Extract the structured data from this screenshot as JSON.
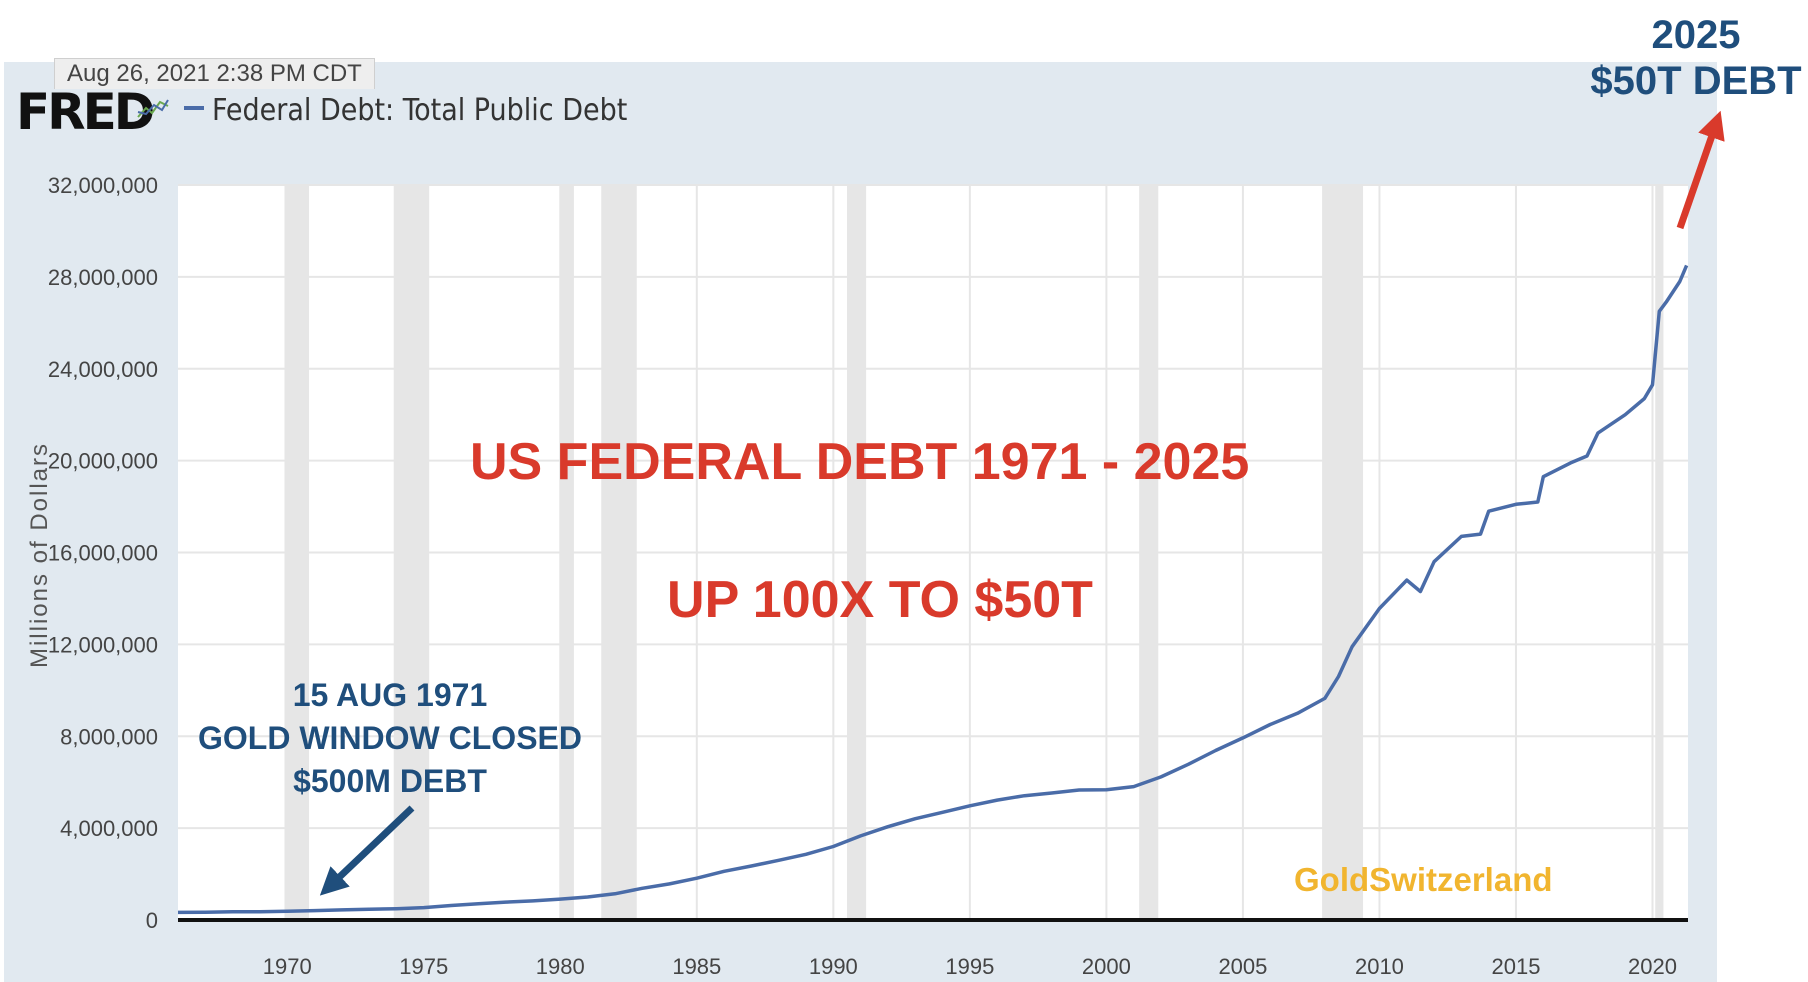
{
  "header": {
    "timestamp": "Aug 26, 2021 2:38 PM CDT",
    "logo": "FRED",
    "icon": "line-chart-icon",
    "legend_label": "Federal Debt: Total Public Debt"
  },
  "annotations": {
    "top_right_year": "2025",
    "top_right_debt": "$50T DEBT",
    "title": "US FEDERAL DEBT 1971 - 2025",
    "subtitle": "UP 100X TO $50T",
    "gold_date": "15 AUG 1971",
    "gold_event": "GOLD WINDOW CLOSED",
    "gold_debt": "$500M DEBT",
    "watermark": "GoldSwitzerland"
  },
  "colors": {
    "series": "#4a6ca8",
    "recession": "#e6e6e6",
    "grid": "#e6e6e6",
    "annotation_blue": "#1f4e7c",
    "annotation_red": "#d93a2b",
    "watermark": "#f1b52f",
    "frame": "#e1e9f0"
  },
  "chart_data": {
    "type": "line",
    "title": "",
    "xlabel": "",
    "ylabel": "Millions of Dollars",
    "xlim": [
      1966,
      2021.3
    ],
    "ylim": [
      0,
      32000000
    ],
    "x_ticks": [
      1970,
      1975,
      1980,
      1985,
      1990,
      1995,
      2000,
      2005,
      2010,
      2015,
      2020
    ],
    "y_ticks": [
      0,
      4000000,
      8000000,
      12000000,
      16000000,
      20000000,
      24000000,
      28000000,
      32000000
    ],
    "y_tick_labels": [
      "0",
      "4,000,000",
      "8,000,000",
      "12,000,000",
      "16,000,000",
      "20,000,000",
      "24,000,000",
      "28,000,000",
      "32,000,000"
    ],
    "grid": true,
    "legend": "top-left",
    "recessions": [
      [
        1969.9,
        1970.8
      ],
      [
        1973.9,
        1975.2
      ],
      [
        1980.0,
        1980.5
      ],
      [
        1981.5,
        1982.8
      ],
      [
        1990.5,
        1991.2
      ],
      [
        2001.2,
        2001.9
      ],
      [
        2007.9,
        2009.4
      ],
      [
        2020.1,
        2020.4
      ]
    ],
    "series": [
      {
        "name": "Federal Debt: Total Public Debt",
        "x": [
          1966,
          1967,
          1968,
          1969,
          1970,
          1971,
          1972,
          1973,
          1974,
          1975,
          1976,
          1977,
          1978,
          1979,
          1980,
          1981,
          1982,
          1983,
          1984,
          1985,
          1986,
          1987,
          1988,
          1989,
          1990,
          1991,
          1992,
          1993,
          1994,
          1995,
          1996,
          1997,
          1998,
          1999,
          2000,
          2001,
          2002,
          2003,
          2004,
          2005,
          2006,
          2007,
          2008,
          2008.5,
          2009,
          2010,
          2011,
          2011.5,
          2012,
          2013,
          2013.7,
          2014,
          2015,
          2015.8,
          2016,
          2017,
          2017.6,
          2018,
          2019,
          2019.7,
          2020.0,
          2020.25,
          2020.5,
          2021,
          2021.25
        ],
        "y": [
          330000,
          340000,
          360000,
          360000,
          380000,
          410000,
          440000,
          470000,
          490000,
          540000,
          630000,
          710000,
          780000,
          830000,
          910000,
          1000000,
          1140000,
          1380000,
          1570000,
          1820000,
          2120000,
          2350000,
          2600000,
          2860000,
          3200000,
          3660000,
          4060000,
          4410000,
          4690000,
          4970000,
          5220000,
          5410000,
          5530000,
          5660000,
          5670000,
          5810000,
          6230000,
          6780000,
          7380000,
          7930000,
          8510000,
          9000000,
          9650000,
          10600000,
          11900000,
          13560000,
          14800000,
          14300000,
          15600000,
          16700000,
          16800000,
          17800000,
          18100000,
          18200000,
          19300000,
          19900000,
          20200000,
          21200000,
          22000000,
          22700000,
          23300000,
          26500000,
          26900000,
          27800000,
          28500000
        ]
      }
    ]
  }
}
